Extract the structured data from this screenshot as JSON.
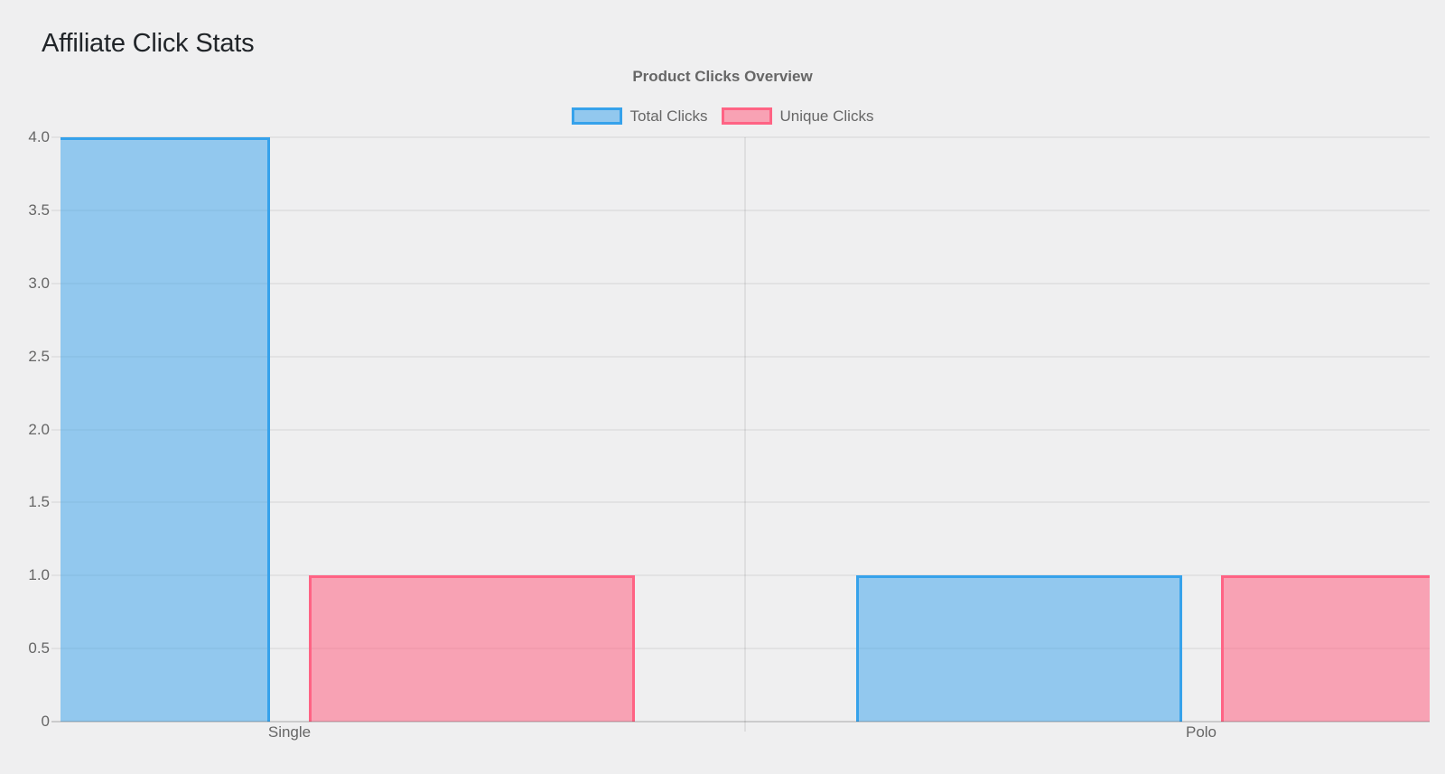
{
  "page": {
    "title": "Affiliate Click Stats",
    "background_color": "#efeff0"
  },
  "chart_data": {
    "type": "bar",
    "title": "Product Clicks Overview",
    "categories": [
      "Single",
      "Polo"
    ],
    "series": [
      {
        "name": "Total Clicks",
        "values": [
          4,
          1
        ]
      },
      {
        "name": "Unique Clicks",
        "values": [
          1,
          1
        ]
      }
    ],
    "series_colors": [
      {
        "fill": "rgba(54,162,235,0.5)",
        "border": "#36a2eb"
      },
      {
        "fill": "rgba(255,99,132,0.55)",
        "border": "#ff6384"
      }
    ],
    "xlabel": "",
    "ylabel": "",
    "ylim": [
      0,
      4
    ],
    "y_tick_step": 0.5,
    "y_tick_labels": [
      "0",
      "0.5",
      "1.0",
      "1.5",
      "2.0",
      "2.5",
      "3.0",
      "3.5",
      "4.0"
    ],
    "grid": true,
    "legend_position": "top",
    "text_color": "#666666"
  }
}
